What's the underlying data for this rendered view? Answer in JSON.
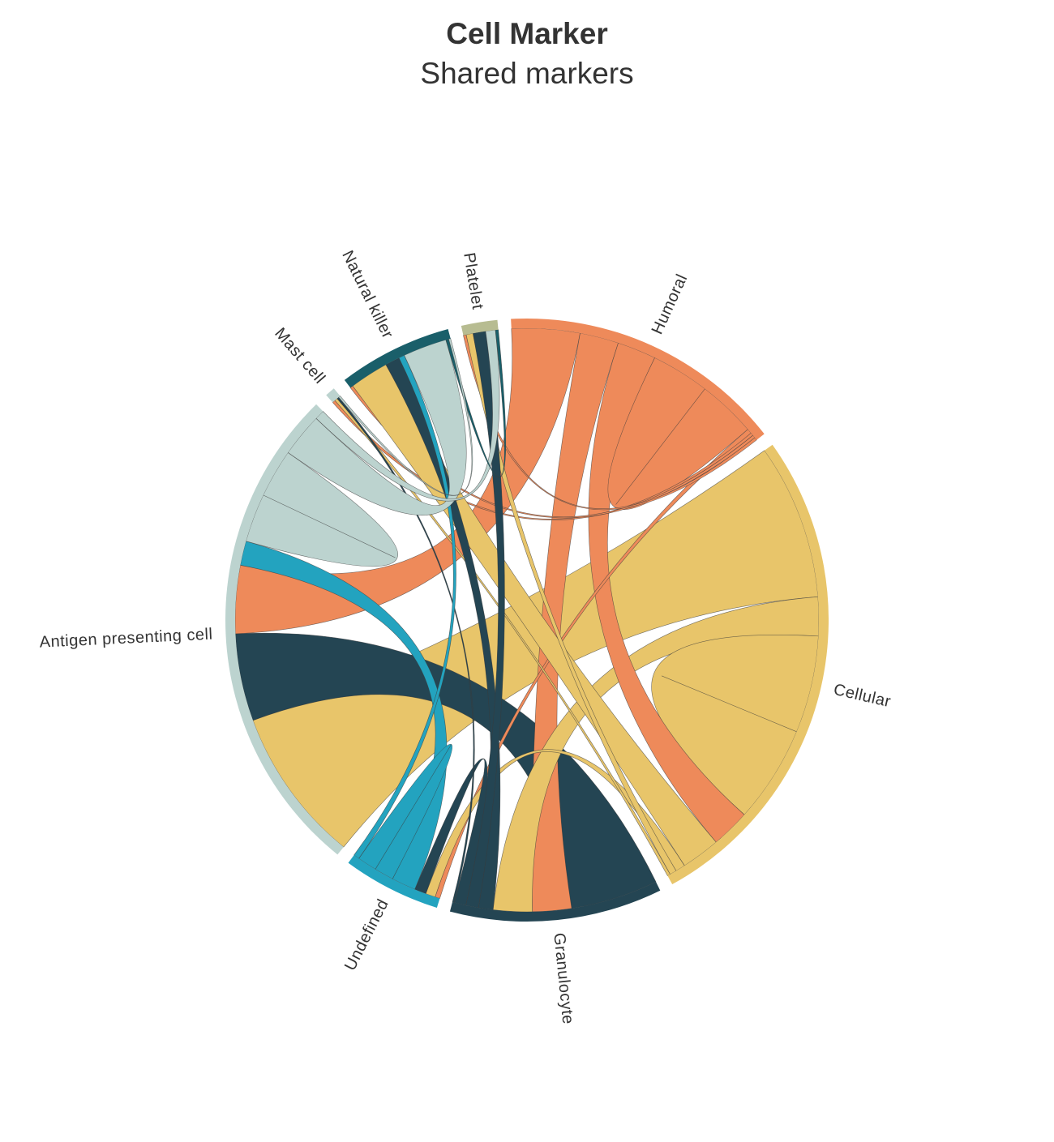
{
  "header": {
    "title": "Cell Marker",
    "subtitle": "Shared markers"
  },
  "chart_data": {
    "type": "chord",
    "title": "Cell Marker",
    "subtitle": "Shared markers",
    "nodes": [
      {
        "id": "platelet",
        "name": "Platelet",
        "color": "#b7bc91"
      },
      {
        "id": "humoral",
        "name": "Humoral",
        "color": "#ee8a5a"
      },
      {
        "id": "cellular",
        "name": "Cellular",
        "color": "#e8c56a"
      },
      {
        "id": "granulocyte",
        "name": "Granulocyte",
        "color": "#244553"
      },
      {
        "id": "undefined",
        "name": "Undefined",
        "color": "#23a3bf"
      },
      {
        "id": "apc",
        "name": "Antigen presenting cell",
        "color": "#bcd3cf"
      },
      {
        "id": "mast",
        "name": "Mast cell",
        "color": "#bcd3cf"
      },
      {
        "id": "nk",
        "name": "Natural killer",
        "color": "#1a5f6a"
      }
    ],
    "links": [
      {
        "source": "cellular",
        "target": "apc",
        "value": 16,
        "color": "#e8c56a"
      },
      {
        "source": "granulocyte",
        "target": "apc",
        "value": 9,
        "color": "#244553"
      },
      {
        "source": "humoral",
        "target": "apc",
        "value": 7,
        "color": "#ee8a5a"
      },
      {
        "source": "humoral",
        "target": "granulocyte",
        "value": 4,
        "color": "#ee8a5a"
      },
      {
        "source": "cellular",
        "target": "granulocyte",
        "value": 4,
        "color": "#e8c56a"
      },
      {
        "source": "cellular",
        "target": "cellular",
        "value": 10,
        "color": "#e8c56a"
      },
      {
        "source": "humoral",
        "target": "cellular",
        "value": 4,
        "color": "#ee8a5a"
      },
      {
        "source": "humoral",
        "target": "humoral",
        "value": 6,
        "color": "#ee8a5a"
      },
      {
        "source": "humoral",
        "target": "undefined",
        "value": 0.5,
        "color": "#ee8a5a"
      },
      {
        "source": "humoral",
        "target": "mast",
        "value": 0.3,
        "color": "#ee8a5a"
      },
      {
        "source": "humoral",
        "target": "nk",
        "value": 0.3,
        "color": "#ee8a5a"
      },
      {
        "source": "humoral",
        "target": "platelet",
        "value": 0.3,
        "color": "#ee8a5a"
      },
      {
        "source": "cellular",
        "target": "nk",
        "value": 4,
        "color": "#e8c56a"
      },
      {
        "source": "cellular",
        "target": "undefined",
        "value": 1,
        "color": "#e8c56a"
      },
      {
        "source": "cellular",
        "target": "platelet",
        "value": 0.7,
        "color": "#e8c56a"
      },
      {
        "source": "cellular",
        "target": "mast",
        "value": 0.3,
        "color": "#e8c56a"
      },
      {
        "source": "granulocyte",
        "target": "nk",
        "value": 1.5,
        "color": "#244553"
      },
      {
        "source": "granulocyte",
        "target": "platelet",
        "value": 1.3,
        "color": "#244553"
      },
      {
        "source": "granulocyte",
        "target": "undefined",
        "value": 1.2,
        "color": "#244553"
      },
      {
        "source": "granulocyte",
        "target": "mast",
        "value": 0.2,
        "color": "#244553"
      },
      {
        "source": "undefined",
        "target": "apc",
        "value": 2.5,
        "color": "#23a3bf"
      },
      {
        "source": "undefined",
        "target": "undefined",
        "value": 2,
        "color": "#23a3bf"
      },
      {
        "source": "undefined",
        "target": "nk",
        "value": 0.6,
        "color": "#23a3bf"
      },
      {
        "source": "apc",
        "target": "apc",
        "value": 5,
        "color": "#bcd3cf"
      },
      {
        "source": "apc",
        "target": "nk",
        "value": 4.5,
        "color": "#bcd3cf"
      },
      {
        "source": "apc",
        "target": "platelet",
        "value": 1,
        "color": "#bcd3cf"
      },
      {
        "source": "nk",
        "target": "platelet",
        "value": 0.3,
        "color": "#1a5f6a"
      },
      {
        "source": "mast",
        "target": "nk",
        "value": 0.2,
        "color": "#bcd3cf"
      }
    ]
  }
}
